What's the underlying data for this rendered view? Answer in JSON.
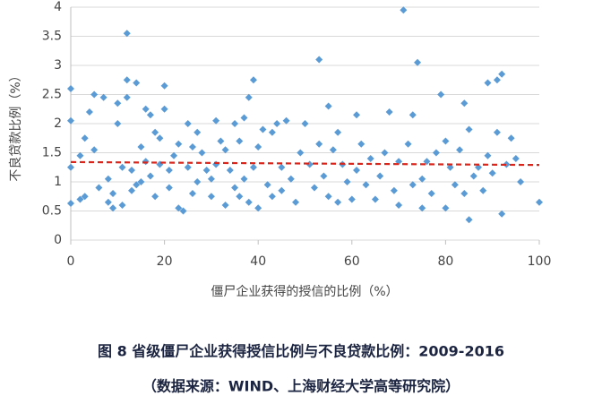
{
  "chart_data": {
    "type": "scatter",
    "x_label": "僵尸企业获得的授信的比例（%）",
    "y_label": "不良贷款比例（%）",
    "caption": "图 8  省级僵尸企业获得授信比例与不良贷款比例：2009-2016",
    "source": "（数据来源：WIND、上海财经大学高等研究院）",
    "color": "#5b9bd5",
    "xlim": [
      0,
      100
    ],
    "xticks": [
      0,
      20,
      40,
      60,
      80,
      100
    ],
    "ylim": [
      0,
      4
    ],
    "yticks": [
      0,
      0.5,
      1,
      1.5,
      2,
      2.5,
      3,
      3.5,
      4
    ],
    "grid": true,
    "trend": {
      "x": [
        0,
        100
      ],
      "values": [
        1.34,
        1.29
      ],
      "color": "#d9261c"
    },
    "x": [
      0,
      0,
      0,
      0,
      2,
      2,
      3,
      3,
      4,
      5,
      5,
      6,
      7,
      8,
      8,
      9,
      9,
      10,
      10,
      11,
      11,
      12,
      12,
      12,
      13,
      13,
      14,
      14,
      15,
      15,
      16,
      16,
      17,
      17,
      18,
      18,
      19,
      19,
      20,
      20,
      21,
      21,
      22,
      23,
      23,
      24,
      25,
      25,
      26,
      26,
      27,
      27,
      28,
      29,
      30,
      30,
      31,
      31,
      32,
      33,
      33,
      34,
      35,
      35,
      36,
      36,
      37,
      37,
      38,
      38,
      39,
      39,
      40,
      40,
      41,
      42,
      43,
      43,
      44,
      45,
      45,
      46,
      47,
      48,
      49,
      50,
      51,
      52,
      53,
      53,
      54,
      55,
      55,
      56,
      57,
      57,
      58,
      59,
      60,
      61,
      61,
      62,
      63,
      64,
      65,
      66,
      67,
      68,
      69,
      70,
      70,
      71,
      72,
      73,
      73,
      74,
      75,
      75,
      76,
      77,
      78,
      79,
      80,
      80,
      81,
      82,
      83,
      84,
      84,
      85,
      85,
      86,
      87,
      88,
      89,
      89,
      90,
      91,
      91,
      92,
      92,
      93,
      94,
      95,
      96,
      100
    ],
    "values": [
      2.6,
      2.05,
      1.25,
      0.63,
      1.45,
      0.7,
      1.75,
      0.75,
      2.2,
      2.5,
      1.55,
      0.9,
      2.45,
      1.05,
      0.65,
      0.55,
      0.8,
      2.0,
      2.35,
      1.25,
      0.6,
      3.55,
      2.75,
      2.45,
      1.2,
      0.85,
      2.7,
      0.95,
      1.6,
      1.0,
      2.25,
      1.35,
      2.15,
      1.1,
      1.85,
      0.75,
      1.75,
      1.3,
      2.65,
      2.25,
      1.2,
      0.9,
      1.45,
      1.65,
      0.55,
      0.5,
      2.0,
      1.25,
      1.6,
      0.8,
      1.85,
      1.0,
      1.5,
      1.2,
      1.05,
      0.75,
      2.05,
      1.3,
      1.7,
      1.55,
      0.6,
      1.2,
      2.0,
      0.9,
      1.7,
      0.75,
      2.1,
      1.05,
      2.45,
      0.65,
      2.75,
      1.25,
      1.6,
      0.55,
      1.9,
      0.95,
      1.85,
      0.75,
      2.0,
      1.25,
      0.85,
      2.05,
      1.05,
      0.65,
      1.5,
      2.0,
      1.3,
      0.9,
      3.1,
      1.65,
      1.1,
      2.3,
      0.75,
      1.55,
      1.85,
      0.65,
      1.3,
      1.0,
      0.7,
      2.15,
      1.2,
      1.65,
      0.95,
      1.4,
      0.7,
      1.1,
      1.5,
      2.2,
      0.85,
      1.35,
      0.6,
      3.95,
      1.65,
      2.15,
      0.95,
      3.05,
      1.05,
      0.55,
      1.35,
      0.8,
      1.5,
      2.5,
      1.7,
      0.55,
      1.25,
      0.95,
      1.55,
      2.35,
      0.8,
      1.9,
      0.35,
      1.1,
      1.25,
      0.85,
      2.7,
      1.45,
      1.15,
      2.75,
      1.85,
      2.85,
      0.45,
      1.3,
      1.75,
      1.4,
      1.0,
      0.65
    ]
  }
}
